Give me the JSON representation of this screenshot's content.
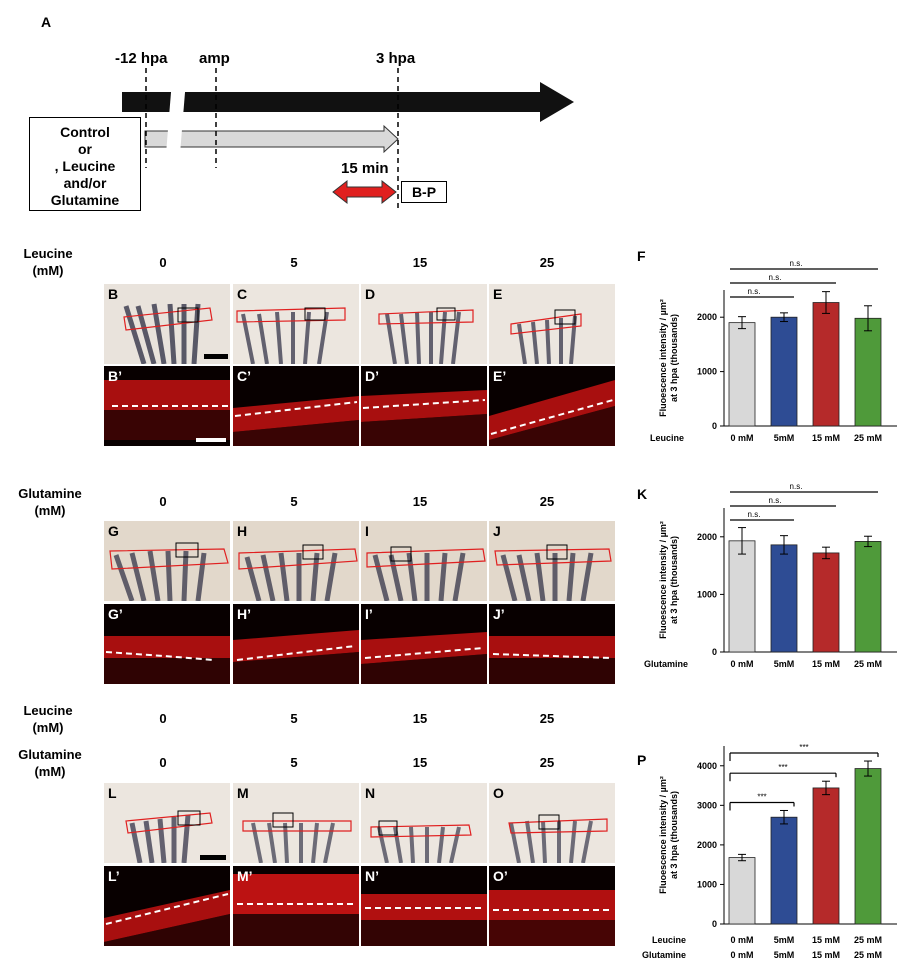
{
  "panel_a": {
    "label": "A",
    "t_minus12": "-12 hpa",
    "t_amp": "amp",
    "t_3hpa": "3 hpa",
    "box_lines": [
      "Control",
      "or",
      ", Leucine",
      "and/or",
      "Glutamine"
    ],
    "duration": "15 min",
    "bp_box": "B-P"
  },
  "row1": {
    "axis_label_1": "Leucine",
    "axis_label_2": "(mM)",
    "concentrations": [
      "0",
      "5",
      "15",
      "25"
    ],
    "top_labels": [
      "B",
      "C",
      "D",
      "E"
    ],
    "bottom_labels": [
      "B’",
      "C’",
      "D’",
      "E’"
    ]
  },
  "row2": {
    "axis_label_1": "Glutamine",
    "axis_label_2": "(mM)",
    "concentrations": [
      "0",
      "5",
      "15",
      "25"
    ],
    "top_labels": [
      "G",
      "H",
      "I",
      "J"
    ],
    "bottom_labels": [
      "G’",
      "H’",
      "I’",
      "J’"
    ]
  },
  "row3": {
    "axis_label_a1": "Leucine",
    "axis_label_a2": "(mM)",
    "axis_label_b1": "Glutamine",
    "axis_label_b2": "(mM)",
    "concentrations": [
      "0",
      "5",
      "15",
      "25"
    ],
    "top_labels": [
      "L",
      "M",
      "N",
      "O"
    ],
    "bottom_labels": [
      "L’",
      "M’",
      "N’",
      "O’"
    ]
  },
  "chart_data": [
    {
      "panel": "F",
      "type": "bar",
      "ylabel_1": "Fluoescence intensity / µm²",
      "ylabel_2": "at 3 hpa (thousands)",
      "row_titles": [
        "Leucine"
      ],
      "categories": [
        [
          "0 mM"
        ],
        [
          "5mM"
        ],
        [
          "15 mM"
        ],
        [
          "25 mM"
        ]
      ],
      "values": [
        1900,
        2000,
        2270,
        1980
      ],
      "errors": [
        110,
        80,
        200,
        230
      ],
      "colors": [
        "#d8d8d8",
        "#2e4c94",
        "#b52a2a",
        "#4f9a3a"
      ],
      "ylim": [
        0,
        2500
      ],
      "yticks": [
        0,
        1000,
        2000
      ],
      "significance": [
        "n.s.",
        "n.s.",
        "n.s."
      ]
    },
    {
      "panel": "K",
      "type": "bar",
      "ylabel_1": "Fluoescence intensity / µm²",
      "ylabel_2": "at 3 hpa (thousands)",
      "row_titles": [
        "Glutamine"
      ],
      "categories": [
        [
          "0 mM"
        ],
        [
          "5mM"
        ],
        [
          "15 mM"
        ],
        [
          "25 mM"
        ]
      ],
      "values": [
        1930,
        1860,
        1720,
        1920
      ],
      "errors": [
        230,
        160,
        100,
        90
      ],
      "colors": [
        "#d8d8d8",
        "#2e4c94",
        "#b52a2a",
        "#4f9a3a"
      ],
      "ylim": [
        0,
        2500
      ],
      "yticks": [
        0,
        1000,
        2000
      ],
      "significance": [
        "n.s.",
        "n.s.",
        "n.s."
      ]
    },
    {
      "panel": "P",
      "type": "bar",
      "ylabel_1": "Fluoescence intensity / µm²",
      "ylabel_2": "at 3 hpa (thousands)",
      "row_titles": [
        "Leucine",
        "Glutamine"
      ],
      "categories": [
        [
          "0 mM",
          "0 mM"
        ],
        [
          "5mM",
          "5mM"
        ],
        [
          "15 mM",
          "15 mM"
        ],
        [
          "25 mM",
          "25 mM"
        ]
      ],
      "values": [
        1680,
        2700,
        3440,
        3930
      ],
      "errors": [
        80,
        170,
        170,
        190
      ],
      "colors": [
        "#d8d8d8",
        "#2e4c94",
        "#b52a2a",
        "#4f9a3a"
      ],
      "ylim": [
        0,
        4500
      ],
      "yticks": [
        0,
        1000,
        2000,
        3000,
        4000
      ],
      "significance": [
        "***",
        "***",
        "***"
      ]
    }
  ]
}
